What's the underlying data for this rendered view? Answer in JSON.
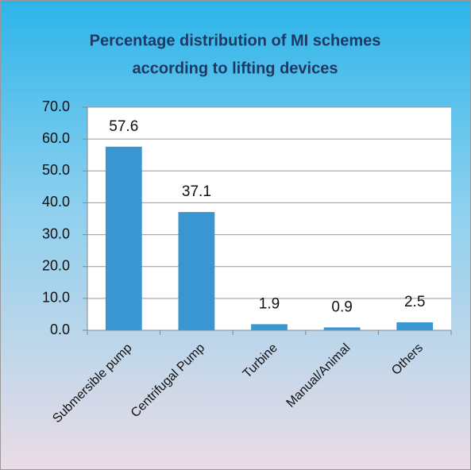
{
  "chart_data": {
    "type": "bar",
    "title": [
      "Percentage distribution of MI schemes",
      "according to lifting devices"
    ],
    "categories": [
      "Submersible pump",
      "Centrifugal Pump",
      "Turbine",
      "Manual/Animal",
      "Others"
    ],
    "values": [
      57.6,
      37.1,
      1.9,
      0.9,
      2.5
    ],
    "color": "#3a96d0",
    "ylim": [
      0,
      70
    ],
    "yticks": [
      {
        "value": 0,
        "label": "0.0"
      },
      {
        "value": 10,
        "label": "10.0"
      },
      {
        "value": 20,
        "label": "20.0"
      },
      {
        "value": 30,
        "label": "30.0"
      },
      {
        "value": 40,
        "label": "40.0"
      },
      {
        "value": 50,
        "label": "50.0"
      },
      {
        "value": 60,
        "label": "60.0"
      },
      {
        "value": 70,
        "label": "70.0"
      }
    ],
    "grid": true
  }
}
